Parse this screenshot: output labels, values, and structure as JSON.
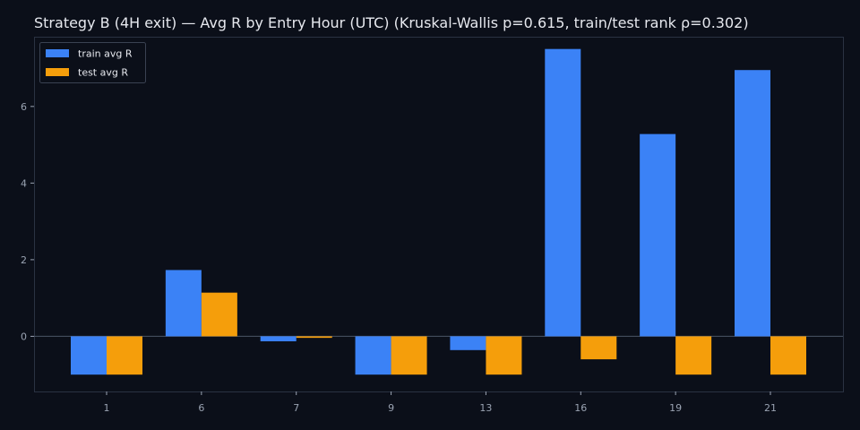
{
  "chart_data": {
    "type": "bar",
    "title": "Strategy B (4H exit) — Avg R by Entry Hour (UTC) (Kruskal-Wallis p=0.615, train/test rank ρ=0.302)",
    "xlabel": "",
    "ylabel": "",
    "categories": [
      "1",
      "6",
      "7",
      "9",
      "13",
      "16",
      "19",
      "21"
    ],
    "series": [
      {
        "name": "train avg R",
        "color": "#3b82f6",
        "values": [
          -1.0,
          1.73,
          -0.13,
          -1.0,
          -0.36,
          7.5,
          5.28,
          6.95
        ]
      },
      {
        "name": "test avg R",
        "color": "#f59e0b",
        "values": [
          -1.0,
          1.14,
          -0.04,
          -1.0,
          -1.0,
          -0.6,
          -1.0,
          -1.0
        ]
      }
    ],
    "ylim": [
      -1.44,
      7.82
    ],
    "yticks": [
      0,
      2,
      4,
      6
    ],
    "grid": false,
    "legend_position": "top-left",
    "colors": {
      "background": "#0b0f19",
      "axes_border": "#2a3242",
      "zero_line": "#4b5566"
    }
  }
}
